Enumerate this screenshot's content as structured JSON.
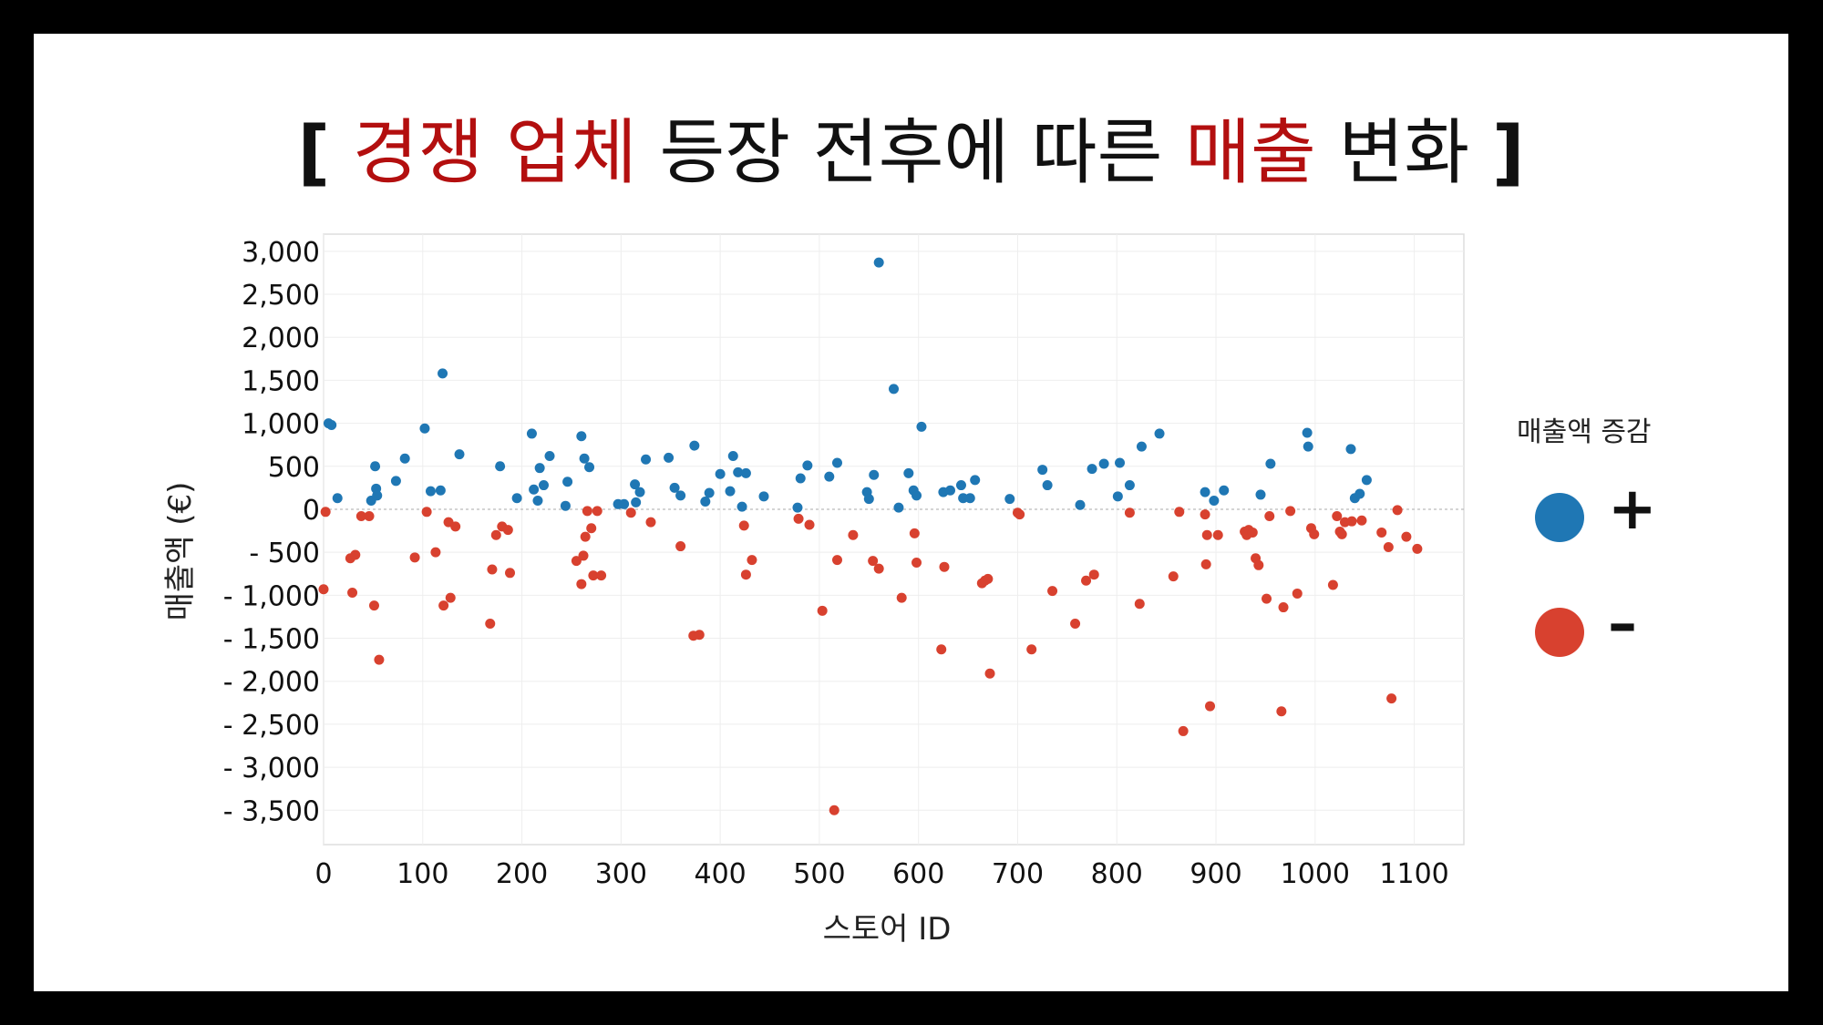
{
  "title": {
    "open_bracket": "[",
    "part1": "경쟁 업체",
    "part2": "등장 전후에 따른",
    "part3": "매출",
    "part4": "변화",
    "close_bracket": "]"
  },
  "colors": {
    "positive": "#1f77b4",
    "negative": "#d8412f",
    "title_highlight": "#b30f0f"
  },
  "legend": {
    "title": "매출액 증감",
    "items": [
      {
        "label": "+",
        "color": "#1f77b4"
      },
      {
        "label": "–",
        "color": "#d8412f"
      }
    ]
  },
  "chart_data": {
    "type": "scatter",
    "xlabel": "스토어 ID",
    "ylabel": "매출액 (€)",
    "xlim": [
      0,
      1150
    ],
    "ylim": [
      -3900,
      3200
    ],
    "xticks": [
      0,
      100,
      200,
      300,
      400,
      500,
      600,
      700,
      800,
      900,
      1000,
      1100
    ],
    "xtick_labels": [
      "0",
      "100",
      "200",
      "300",
      "400",
      "500",
      "600",
      "700",
      "800",
      "900",
      "1000",
      "1100"
    ],
    "yticks": [
      3000,
      2500,
      2000,
      1500,
      1000,
      500,
      0,
      -500,
      -1000,
      -1500,
      -2000,
      -2500,
      -3000,
      -3500
    ],
    "ytick_labels": [
      "3,000",
      "2,500",
      "2,000",
      "1,500",
      "1,000",
      "500",
      "0",
      "- 500",
      "- 1,000",
      "- 1,500",
      "- 2,000",
      "- 2,500",
      "- 3,000",
      "- 3,500"
    ],
    "grid": true,
    "zero_line": true,
    "series": [
      {
        "name": "+",
        "points": [
          [
            5,
            1000
          ],
          [
            8,
            980
          ],
          [
            14,
            130
          ],
          [
            48,
            100
          ],
          [
            52,
            500
          ],
          [
            53,
            240
          ],
          [
            54,
            160
          ],
          [
            73,
            330
          ],
          [
            82,
            590
          ],
          [
            102,
            940
          ],
          [
            108,
            210
          ],
          [
            118,
            220
          ],
          [
            120,
            1580
          ],
          [
            137,
            640
          ],
          [
            178,
            500
          ],
          [
            195,
            130
          ],
          [
            210,
            880
          ],
          [
            212,
            230
          ],
          [
            216,
            100
          ],
          [
            218,
            480
          ],
          [
            222,
            280
          ],
          [
            228,
            620
          ],
          [
            244,
            40
          ],
          [
            246,
            320
          ],
          [
            260,
            850
          ],
          [
            263,
            590
          ],
          [
            268,
            490
          ],
          [
            297,
            60
          ],
          [
            303,
            60
          ],
          [
            314,
            290
          ],
          [
            315,
            80
          ],
          [
            319,
            200
          ],
          [
            325,
            580
          ],
          [
            348,
            600
          ],
          [
            354,
            250
          ],
          [
            360,
            160
          ],
          [
            374,
            740
          ],
          [
            385,
            90
          ],
          [
            389,
            190
          ],
          [
            400,
            410
          ],
          [
            410,
            210
          ],
          [
            413,
            620
          ],
          [
            418,
            430
          ],
          [
            422,
            30
          ],
          [
            426,
            420
          ],
          [
            444,
            150
          ],
          [
            478,
            20
          ],
          [
            481,
            360
          ],
          [
            488,
            510
          ],
          [
            510,
            380
          ],
          [
            518,
            540
          ],
          [
            548,
            200
          ],
          [
            550,
            120
          ],
          [
            555,
            400
          ],
          [
            560,
            2870
          ],
          [
            575,
            1400
          ],
          [
            580,
            20
          ],
          [
            590,
            420
          ],
          [
            595,
            220
          ],
          [
            598,
            160
          ],
          [
            603,
            960
          ],
          [
            625,
            200
          ],
          [
            632,
            220
          ],
          [
            643,
            280
          ],
          [
            645,
            130
          ],
          [
            652,
            130
          ],
          [
            657,
            340
          ],
          [
            692,
            120
          ],
          [
            725,
            460
          ],
          [
            730,
            280
          ],
          [
            763,
            50
          ],
          [
            775,
            470
          ],
          [
            787,
            530
          ],
          [
            801,
            150
          ],
          [
            803,
            540
          ],
          [
            813,
            280
          ],
          [
            825,
            730
          ],
          [
            843,
            880
          ],
          [
            889,
            200
          ],
          [
            898,
            100
          ],
          [
            908,
            220
          ],
          [
            945,
            170
          ],
          [
            955,
            530
          ],
          [
            992,
            890
          ],
          [
            993,
            730
          ],
          [
            1036,
            700
          ],
          [
            1040,
            130
          ],
          [
            1045,
            180
          ],
          [
            1052,
            340
          ]
        ]
      },
      {
        "name": "–",
        "points": [
          [
            0,
            -930
          ],
          [
            2,
            -30
          ],
          [
            27,
            -570
          ],
          [
            29,
            -970
          ],
          [
            32,
            -530
          ],
          [
            38,
            -80
          ],
          [
            46,
            -80
          ],
          [
            51,
            -1120
          ],
          [
            56,
            -1750
          ],
          [
            92,
            -560
          ],
          [
            104,
            -30
          ],
          [
            113,
            -500
          ],
          [
            121,
            -1120
          ],
          [
            126,
            -150
          ],
          [
            128,
            -1030
          ],
          [
            133,
            -200
          ],
          [
            168,
            -1330
          ],
          [
            170,
            -700
          ],
          [
            174,
            -300
          ],
          [
            180,
            -200
          ],
          [
            186,
            -240
          ],
          [
            188,
            -740
          ],
          [
            255,
            -600
          ],
          [
            260,
            -870
          ],
          [
            262,
            -540
          ],
          [
            264,
            -320
          ],
          [
            266,
            -20
          ],
          [
            270,
            -220
          ],
          [
            272,
            -770
          ],
          [
            276,
            -20
          ],
          [
            280,
            -770
          ],
          [
            310,
            -40
          ],
          [
            330,
            -150
          ],
          [
            360,
            -430
          ],
          [
            373,
            -1470
          ],
          [
            379,
            -1460
          ],
          [
            424,
            -190
          ],
          [
            426,
            -760
          ],
          [
            432,
            -590
          ],
          [
            479,
            -110
          ],
          [
            490,
            -180
          ],
          [
            503,
            -1180
          ],
          [
            515,
            -3500
          ],
          [
            518,
            -590
          ],
          [
            534,
            -300
          ],
          [
            554,
            -600
          ],
          [
            560,
            -690
          ],
          [
            583,
            -1030
          ],
          [
            596,
            -280
          ],
          [
            598,
            -620
          ],
          [
            623,
            -1630
          ],
          [
            626,
            -670
          ],
          [
            664,
            -860
          ],
          [
            667,
            -830
          ],
          [
            670,
            -810
          ],
          [
            672,
            -1910
          ],
          [
            700,
            -40
          ],
          [
            702,
            -60
          ],
          [
            714,
            -1630
          ],
          [
            735,
            -950
          ],
          [
            758,
            -1330
          ],
          [
            769,
            -830
          ],
          [
            777,
            -760
          ],
          [
            813,
            -40
          ],
          [
            823,
            -1100
          ],
          [
            857,
            -780
          ],
          [
            863,
            -30
          ],
          [
            867,
            -2580
          ],
          [
            889,
            -60
          ],
          [
            890,
            -640
          ],
          [
            891,
            -300
          ],
          [
            894,
            -2290
          ],
          [
            902,
            -300
          ],
          [
            929,
            -260
          ],
          [
            931,
            -300
          ],
          [
            933,
            -240
          ],
          [
            937,
            -270
          ],
          [
            940,
            -570
          ],
          [
            943,
            -650
          ],
          [
            951,
            -1040
          ],
          [
            954,
            -80
          ],
          [
            966,
            -2350
          ],
          [
            968,
            -1140
          ],
          [
            975,
            -20
          ],
          [
            982,
            -980
          ],
          [
            996,
            -220
          ],
          [
            999,
            -290
          ],
          [
            1018,
            -880
          ],
          [
            1022,
            -80
          ],
          [
            1025,
            -260
          ],
          [
            1027,
            -290
          ],
          [
            1030,
            -150
          ],
          [
            1037,
            -140
          ],
          [
            1047,
            -130
          ],
          [
            1067,
            -270
          ],
          [
            1074,
            -440
          ],
          [
            1077,
            -2200
          ],
          [
            1083,
            -10
          ],
          [
            1092,
            -320
          ],
          [
            1103,
            -460
          ]
        ]
      }
    ]
  }
}
